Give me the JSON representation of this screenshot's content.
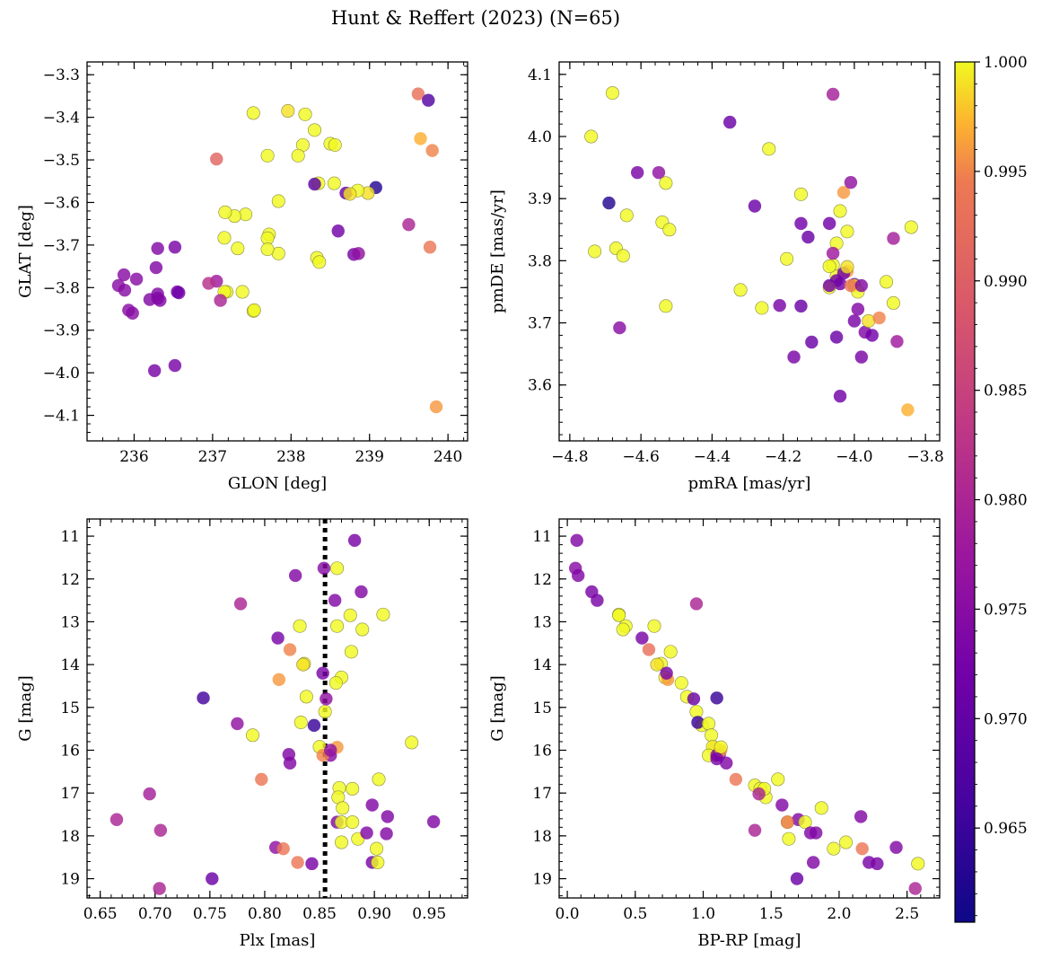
{
  "title": "Hunt & Reffert (2023) (N=65)",
  "colorbar": {
    "cmap": "plasma",
    "range": [
      0.9607,
      1.0
    ],
    "ticks": [
      "0.965",
      "0.970",
      "0.975",
      "0.980",
      "0.985",
      "0.990",
      "0.995",
      "1.000"
    ],
    "tick_values": [
      0.965,
      0.97,
      0.975,
      0.98,
      0.985,
      0.99,
      0.995,
      1.0
    ]
  },
  "chart_data": [
    {
      "type": "scatter",
      "id": "lb",
      "xlabel": "GLON [deg]",
      "ylabel": "GLAT [deg]",
      "xlim": [
        235.4,
        240.25
      ],
      "ylim": [
        -4.16,
        -3.27
      ],
      "xticks": [
        236,
        237,
        238,
        239,
        240
      ],
      "xticklabels": [
        "236",
        "237",
        "238",
        "239",
        "240"
      ],
      "yticks": [
        -3.3,
        -3.4,
        -3.5,
        -3.6,
        -3.7,
        -3.8,
        -3.9,
        -4.0,
        -4.1
      ],
      "yticklabels": [
        "−3.3",
        "−3.4",
        "−3.5",
        "−3.6",
        "−3.7",
        "−3.8",
        "−3.9",
        "−4.0",
        "−4.1"
      ],
      "x": [
        239.62,
        239.75,
        239.65,
        239.8,
        239.85,
        239.5,
        239.77,
        238.8,
        238.7,
        239.08,
        238.98,
        238.85,
        238.75,
        238.6,
        238.55,
        238.5,
        238.3,
        238.15,
        238.09,
        237.96,
        237.52,
        238.33,
        238.36,
        238.18,
        238.35,
        237.84,
        237.84,
        237.72,
        237.7,
        237.7,
        237.7,
        237.42,
        237.32,
        237.28,
        237.38,
        237.18,
        237.16,
        237.15,
        237.05,
        237.15,
        237.1,
        237.05,
        236.95,
        236.55,
        236.3,
        236.33,
        236.57,
        236.52,
        236.3,
        236.28,
        236.2,
        236.3,
        236.03,
        235.98,
        235.93,
        235.88,
        235.87,
        235.8,
        236.52,
        236.26,
        237.52,
        237.53,
        238.56,
        238.86,
        238.3
      ],
      "y": [
        -3.345,
        -3.36,
        -3.45,
        -3.478,
        -4.08,
        -3.652,
        -3.705,
        -3.722,
        -3.578,
        -3.565,
        -3.578,
        -3.572,
        -3.58,
        -3.667,
        -3.555,
        -3.462,
        -3.43,
        -3.465,
        -3.49,
        -3.385,
        -3.39,
        -3.73,
        -3.74,
        -3.393,
        -3.555,
        -3.597,
        -3.72,
        -3.675,
        -3.684,
        -3.71,
        -3.49,
        -3.628,
        -3.708,
        -3.632,
        -3.81,
        -3.81,
        -3.623,
        -3.683,
        -3.498,
        -3.81,
        -3.83,
        -3.785,
        -3.79,
        -3.81,
        -3.708,
        -3.83,
        -3.812,
        -3.705,
        -3.815,
        -3.753,
        -3.828,
        -3.825,
        -3.78,
        -3.86,
        -3.853,
        -3.806,
        -3.77,
        -3.795,
        -3.983,
        -3.995,
        -3.855,
        -3.853,
        -3.465,
        -3.72,
        -3.557
      ],
      "c": [
        0.993,
        0.968,
        0.997,
        0.995,
        0.996,
        0.98,
        0.994,
        0.973,
        0.971,
        0.963,
        0.999,
        1.0,
        0.999,
        0.972,
        1.0,
        1.0,
        1.0,
        1.0,
        1.0,
        0.999,
        1.0,
        1.0,
        1.0,
        1.0,
        1.0,
        1.0,
        1.0,
        1.0,
        1.0,
        1.0,
        1.0,
        1.0,
        1.0,
        1.0,
        1.0,
        1.0,
        1.0,
        1.0,
        0.991,
        1.0,
        0.98,
        0.978,
        0.982,
        0.972,
        0.974,
        0.974,
        0.972,
        0.973,
        0.974,
        0.974,
        0.974,
        0.974,
        0.975,
        0.975,
        0.975,
        0.975,
        0.975,
        0.975,
        0.973,
        0.973,
        1.0,
        1.0,
        1.0,
        0.976,
        0.969
      ]
    },
    {
      "type": "scatter",
      "id": "pm",
      "xlabel": "pmRA [mas/yr]",
      "ylabel": "pmDE [mas/yr]",
      "xlim": [
        -4.83,
        -3.76
      ],
      "ylim": [
        3.51,
        4.12
      ],
      "xticks": [
        -4.8,
        -4.6,
        -4.4,
        -4.2,
        -4.0,
        -3.8
      ],
      "xticklabels": [
        "−4.8",
        "−4.6",
        "−4.4",
        "−4.2",
        "−4.0",
        "−3.8"
      ],
      "yticks": [
        3.6,
        3.7,
        3.8,
        3.9,
        4.0,
        4.1
      ],
      "yticklabels": [
        "3.6",
        "3.7",
        "3.8",
        "3.9",
        "4.0",
        "4.1"
      ],
      "x": [
        -4.68,
        -4.74,
        -4.69,
        -4.64,
        -4.67,
        -4.73,
        -4.65,
        -4.61,
        -4.55,
        -4.53,
        -4.54,
        -4.52,
        -4.53,
        -4.66,
        -4.35,
        -4.24,
        -4.28,
        -4.19,
        -4.21,
        -4.26,
        -4.32,
        -4.15,
        -4.15,
        -4.13,
        -4.12,
        -4.17,
        -4.15,
        -4.07,
        -4.06,
        -4.05,
        -4.05,
        -4.04,
        -4.03,
        -4.02,
        -4.02,
        -4.01,
        -4.0,
        -4.0,
        -3.99,
        -3.99,
        -4.03,
        -4.07,
        -4.07,
        -4.04,
        -4.05,
        -4.04,
        -4.06,
        -4.07,
        -4.0,
        -3.98,
        -3.97,
        -3.95,
        -3.96,
        -3.93,
        -3.91,
        -3.89,
        -3.88,
        -3.89,
        -3.85,
        -3.84,
        -4.01,
        -3.98,
        -4.05,
        -4.06,
        -4.02
      ],
      "y": [
        4.07,
        4.0,
        3.893,
        3.873,
        3.82,
        3.815,
        3.808,
        3.942,
        3.942,
        3.925,
        3.862,
        3.85,
        3.727,
        3.692,
        4.023,
        3.98,
        3.888,
        3.803,
        3.728,
        3.724,
        3.753,
        3.907,
        3.86,
        3.838,
        3.669,
        3.645,
        3.727,
        3.86,
        3.793,
        3.775,
        3.768,
        3.763,
        3.91,
        3.847,
        3.783,
        3.926,
        3.762,
        3.76,
        3.75,
        3.722,
        3.78,
        3.791,
        3.757,
        3.582,
        3.677,
        3.88,
        4.068,
        3.76,
        3.703,
        3.645,
        3.685,
        3.68,
        3.703,
        3.708,
        3.766,
        3.732,
        3.67,
        3.836,
        3.56,
        3.854,
        3.76,
        3.76,
        3.828,
        3.812,
        3.79
      ],
      "c": [
        1.0,
        1.0,
        0.963,
        1.0,
        1.0,
        1.0,
        1.0,
        0.973,
        0.976,
        1.0,
        1.0,
        1.0,
        1.0,
        0.975,
        0.971,
        1.0,
        0.971,
        1.0,
        0.973,
        1.0,
        1.0,
        1.0,
        0.972,
        0.971,
        0.971,
        0.973,
        0.971,
        0.972,
        1.0,
        1.0,
        0.972,
        0.972,
        0.996,
        1.0,
        0.996,
        0.976,
        0.972,
        0.999,
        1.0,
        0.974,
        0.972,
        1.0,
        1.0,
        0.972,
        0.971,
        1.0,
        0.979,
        0.972,
        0.973,
        0.973,
        0.974,
        0.972,
        0.999,
        0.995,
        1.0,
        1.0,
        0.978,
        0.979,
        0.997,
        1.0,
        0.994,
        0.974,
        1.0,
        0.978,
        0.999
      ]
    },
    {
      "type": "scatter",
      "id": "plxg",
      "xlabel": "Plx [mas]",
      "ylabel": "G [mag]",
      "xlim": [
        0.638,
        0.985
      ],
      "ylim": [
        19.45,
        10.6
      ],
      "invert_y": true,
      "vline": 0.855,
      "xticks": [
        0.65,
        0.7,
        0.75,
        0.8,
        0.85,
        0.9,
        0.95
      ],
      "xticklabels": [
        "0.65",
        "0.70",
        "0.75",
        "0.80",
        "0.85",
        "0.90",
        "0.95"
      ],
      "yticks": [
        11,
        12,
        13,
        14,
        15,
        16,
        17,
        18,
        19
      ],
      "yticklabels": [
        "11",
        "12",
        "13",
        "14",
        "15",
        "16",
        "17",
        "18",
        "19"
      ],
      "x": [
        0.882,
        0.854,
        0.828,
        0.778,
        0.864,
        0.888,
        0.866,
        0.832,
        0.908,
        0.878,
        0.866,
        0.889,
        0.812,
        0.823,
        0.879,
        0.836,
        0.835,
        0.87,
        0.813,
        0.865,
        0.853,
        0.744,
        0.838,
        0.845,
        0.833,
        0.855,
        0.775,
        0.789,
        0.85,
        0.86,
        0.866,
        0.853,
        0.822,
        0.823,
        0.797,
        0.934,
        0.904,
        0.868,
        0.867,
        0.88,
        0.871,
        0.695,
        0.898,
        0.912,
        0.866,
        0.705,
        0.665,
        0.87,
        0.88,
        0.954,
        0.81,
        0.817,
        0.885,
        0.87,
        0.902,
        0.893,
        0.83,
        0.843,
        0.898,
        0.903,
        0.911,
        0.752,
        0.704,
        0.856,
        0.86
      ],
      "y": [
        11.1,
        11.75,
        11.92,
        12.58,
        12.5,
        12.3,
        11.75,
        13.1,
        12.83,
        12.85,
        13.1,
        13.18,
        13.38,
        13.65,
        13.7,
        13.98,
        14.0,
        14.3,
        14.35,
        14.43,
        14.2,
        14.78,
        14.75,
        15.42,
        15.35,
        15.1,
        15.38,
        15.65,
        15.92,
        16.12,
        15.93,
        16.12,
        16.1,
        16.3,
        16.68,
        15.82,
        16.68,
        16.88,
        17.1,
        16.9,
        17.35,
        17.02,
        17.28,
        17.55,
        17.68,
        17.87,
        17.62,
        17.68,
        17.68,
        17.67,
        18.27,
        18.3,
        18.07,
        18.15,
        18.3,
        17.93,
        18.62,
        18.65,
        18.62,
        18.62,
        17.95,
        19.0,
        19.23,
        14.8,
        16.0
      ],
      "c": [
        0.973,
        0.975,
        0.974,
        0.98,
        0.974,
        0.974,
        1.0,
        1.0,
        1.0,
        1.0,
        1.0,
        1.0,
        0.973,
        0.995,
        1.0,
        1.0,
        0.999,
        1.0,
        0.996,
        1.0,
        0.973,
        0.966,
        1.0,
        0.965,
        1.0,
        1.0,
        0.976,
        1.0,
        1.0,
        0.975,
        0.996,
        0.995,
        0.974,
        0.974,
        0.994,
        1.0,
        1.0,
        1.0,
        1.0,
        1.0,
        1.0,
        0.979,
        0.974,
        0.974,
        0.974,
        0.98,
        0.98,
        1.0,
        1.0,
        0.974,
        0.976,
        0.994,
        1.0,
        1.0,
        1.0,
        0.974,
        0.994,
        0.973,
        0.973,
        1.0,
        0.974,
        0.971,
        0.98,
        0.976,
        0.976
      ]
    },
    {
      "type": "scatter",
      "id": "cmd",
      "xlabel": "BP-RP [mag]",
      "ylabel": "G [mag]",
      "xlim": [
        -0.06,
        2.74
      ],
      "ylim": [
        19.45,
        10.6
      ],
      "invert_y": true,
      "xticks": [
        0.0,
        0.5,
        1.0,
        1.5,
        2.0,
        2.5
      ],
      "xticklabels": [
        "0.0",
        "0.5",
        "1.0",
        "1.5",
        "2.0",
        "2.5"
      ],
      "yticks": [
        11,
        12,
        13,
        14,
        15,
        16,
        17,
        18,
        19
      ],
      "yticklabels": [
        "11",
        "12",
        "13",
        "14",
        "15",
        "16",
        "17",
        "18",
        "19"
      ],
      "x": [
        0.07,
        0.06,
        0.08,
        0.18,
        0.22,
        0.95,
        0.38,
        0.38,
        0.43,
        0.41,
        0.64,
        0.55,
        0.6,
        0.76,
        0.69,
        0.66,
        0.72,
        0.74,
        0.73,
        0.84,
        1.1,
        0.88,
        0.93,
        0.95,
        0.99,
        0.96,
        1.04,
        1.06,
        1.08,
        1.07,
        1.04,
        1.1,
        1.12,
        1.17,
        1.13,
        1.24,
        1.38,
        1.46,
        1.42,
        1.45,
        1.55,
        1.58,
        1.87,
        1.62,
        1.7,
        1.62,
        1.75,
        1.79,
        1.83,
        1.38,
        2.16,
        1.96,
        2.05,
        2.17,
        2.42,
        2.22,
        2.28,
        2.58,
        2.56,
        1.63,
        1.69,
        1.81,
        1.13,
        1.41,
        1.1
      ],
      "y": [
        11.1,
        11.75,
        11.92,
        12.3,
        12.5,
        12.58,
        12.83,
        12.85,
        13.1,
        13.18,
        13.1,
        13.38,
        13.65,
        13.7,
        13.98,
        14.0,
        14.3,
        14.35,
        14.2,
        14.43,
        14.78,
        14.75,
        14.8,
        15.1,
        15.42,
        15.35,
        15.38,
        15.65,
        15.93,
        15.92,
        16.12,
        16.12,
        16.1,
        16.3,
        16.0,
        16.68,
        16.82,
        17.1,
        16.9,
        16.9,
        16.68,
        17.28,
        17.35,
        17.68,
        17.62,
        17.68,
        17.68,
        17.93,
        17.93,
        17.87,
        17.55,
        18.3,
        18.15,
        18.3,
        18.27,
        18.62,
        18.65,
        18.65,
        19.23,
        18.07,
        19.0,
        18.62,
        15.93,
        17.02,
        16.2
      ],
      "c": [
        0.974,
        0.975,
        0.974,
        0.973,
        0.973,
        0.98,
        1.0,
        1.0,
        1.0,
        1.0,
        1.0,
        0.973,
        0.993,
        1.0,
        1.0,
        0.999,
        1.0,
        0.996,
        0.973,
        1.0,
        0.965,
        1.0,
        0.971,
        1.0,
        1.0,
        0.965,
        1.0,
        1.0,
        0.995,
        1.0,
        1.0,
        0.974,
        0.974,
        0.974,
        0.996,
        0.994,
        1.0,
        1.0,
        1.0,
        1.0,
        1.0,
        0.974,
        1.0,
        1.0,
        0.974,
        0.994,
        1.0,
        0.974,
        0.974,
        0.98,
        0.974,
        1.0,
        1.0,
        0.994,
        0.974,
        0.973,
        0.973,
        1.0,
        0.98,
        1.0,
        0.971,
        0.974,
        1.0,
        0.98,
        0.973
      ]
    }
  ]
}
